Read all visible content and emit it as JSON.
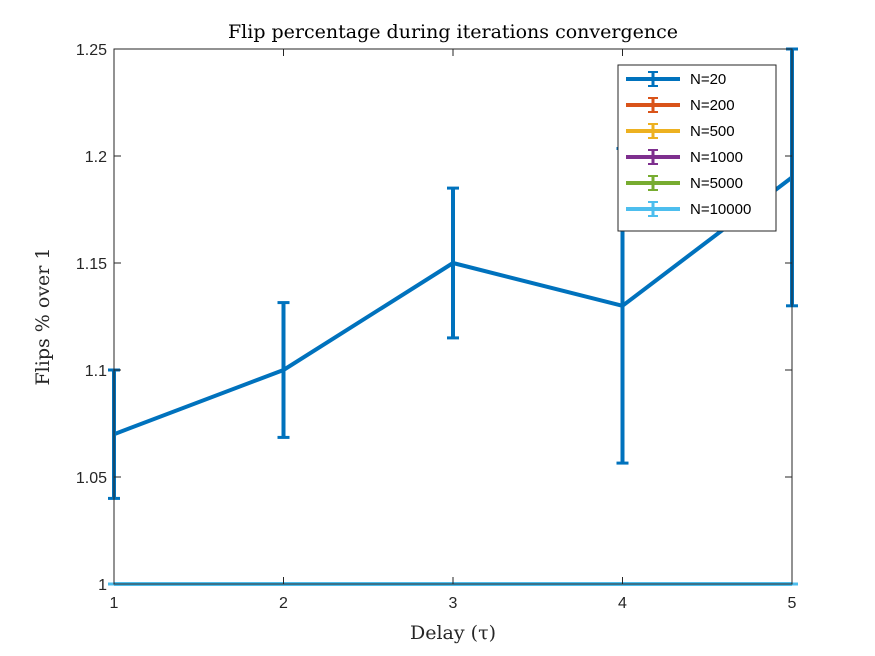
{
  "chart_data": {
    "type": "line",
    "title": "Flip percentage during iterations convergence",
    "xlabel": "Delay (τ)",
    "ylabel": "Flips % over 1",
    "xlim": [
      1,
      5
    ],
    "ylim": [
      1,
      1.25
    ],
    "x": [
      1,
      2,
      3,
      4,
      5
    ],
    "x_ticks": [
      "1",
      "2",
      "3",
      "4",
      "5"
    ],
    "y_ticks": [
      "1",
      "1.05",
      "1.1",
      "1.15",
      "1.2",
      "1.25"
    ],
    "y_tick_values": [
      1,
      1.05,
      1.1,
      1.15,
      1.2,
      1.25
    ],
    "grid": false,
    "legend_position": "top-right",
    "series": [
      {
        "name": "N=20",
        "color": "#0072BD",
        "values": [
          1.07,
          1.1,
          1.15,
          1.13,
          1.19
        ],
        "err_lower": [
          1.04,
          1.0685,
          1.115,
          1.0565,
          1.13
        ],
        "err_upper": [
          1.1,
          1.1315,
          1.185,
          1.2035,
          1.25
        ]
      },
      {
        "name": "N=200",
        "color": "#D95319",
        "values": [
          1,
          1,
          1,
          1,
          1
        ],
        "err_lower": [
          1,
          1,
          1,
          1,
          1
        ],
        "err_upper": [
          1,
          1,
          1,
          1,
          1
        ]
      },
      {
        "name": "N=500",
        "color": "#EDB120",
        "values": [
          1,
          1,
          1,
          1,
          1
        ],
        "err_lower": [
          1,
          1,
          1,
          1,
          1
        ],
        "err_upper": [
          1,
          1,
          1,
          1,
          1
        ]
      },
      {
        "name": "N=1000",
        "color": "#7E2F8E",
        "values": [
          1,
          1,
          1,
          1,
          1
        ],
        "err_lower": [
          1,
          1,
          1,
          1,
          1
        ],
        "err_upper": [
          1,
          1,
          1,
          1,
          1
        ]
      },
      {
        "name": "N=5000",
        "color": "#77AC30",
        "values": [
          1,
          1,
          1,
          1,
          1
        ],
        "err_lower": [
          1,
          1,
          1,
          1,
          1
        ],
        "err_upper": [
          1,
          1,
          1,
          1,
          1
        ]
      },
      {
        "name": "N=10000",
        "color": "#4DBEEE",
        "values": [
          1,
          1,
          1,
          1,
          1
        ],
        "err_lower": [
          1,
          1,
          1,
          1,
          1
        ],
        "err_upper": [
          1,
          1,
          1,
          1,
          1
        ]
      }
    ]
  }
}
